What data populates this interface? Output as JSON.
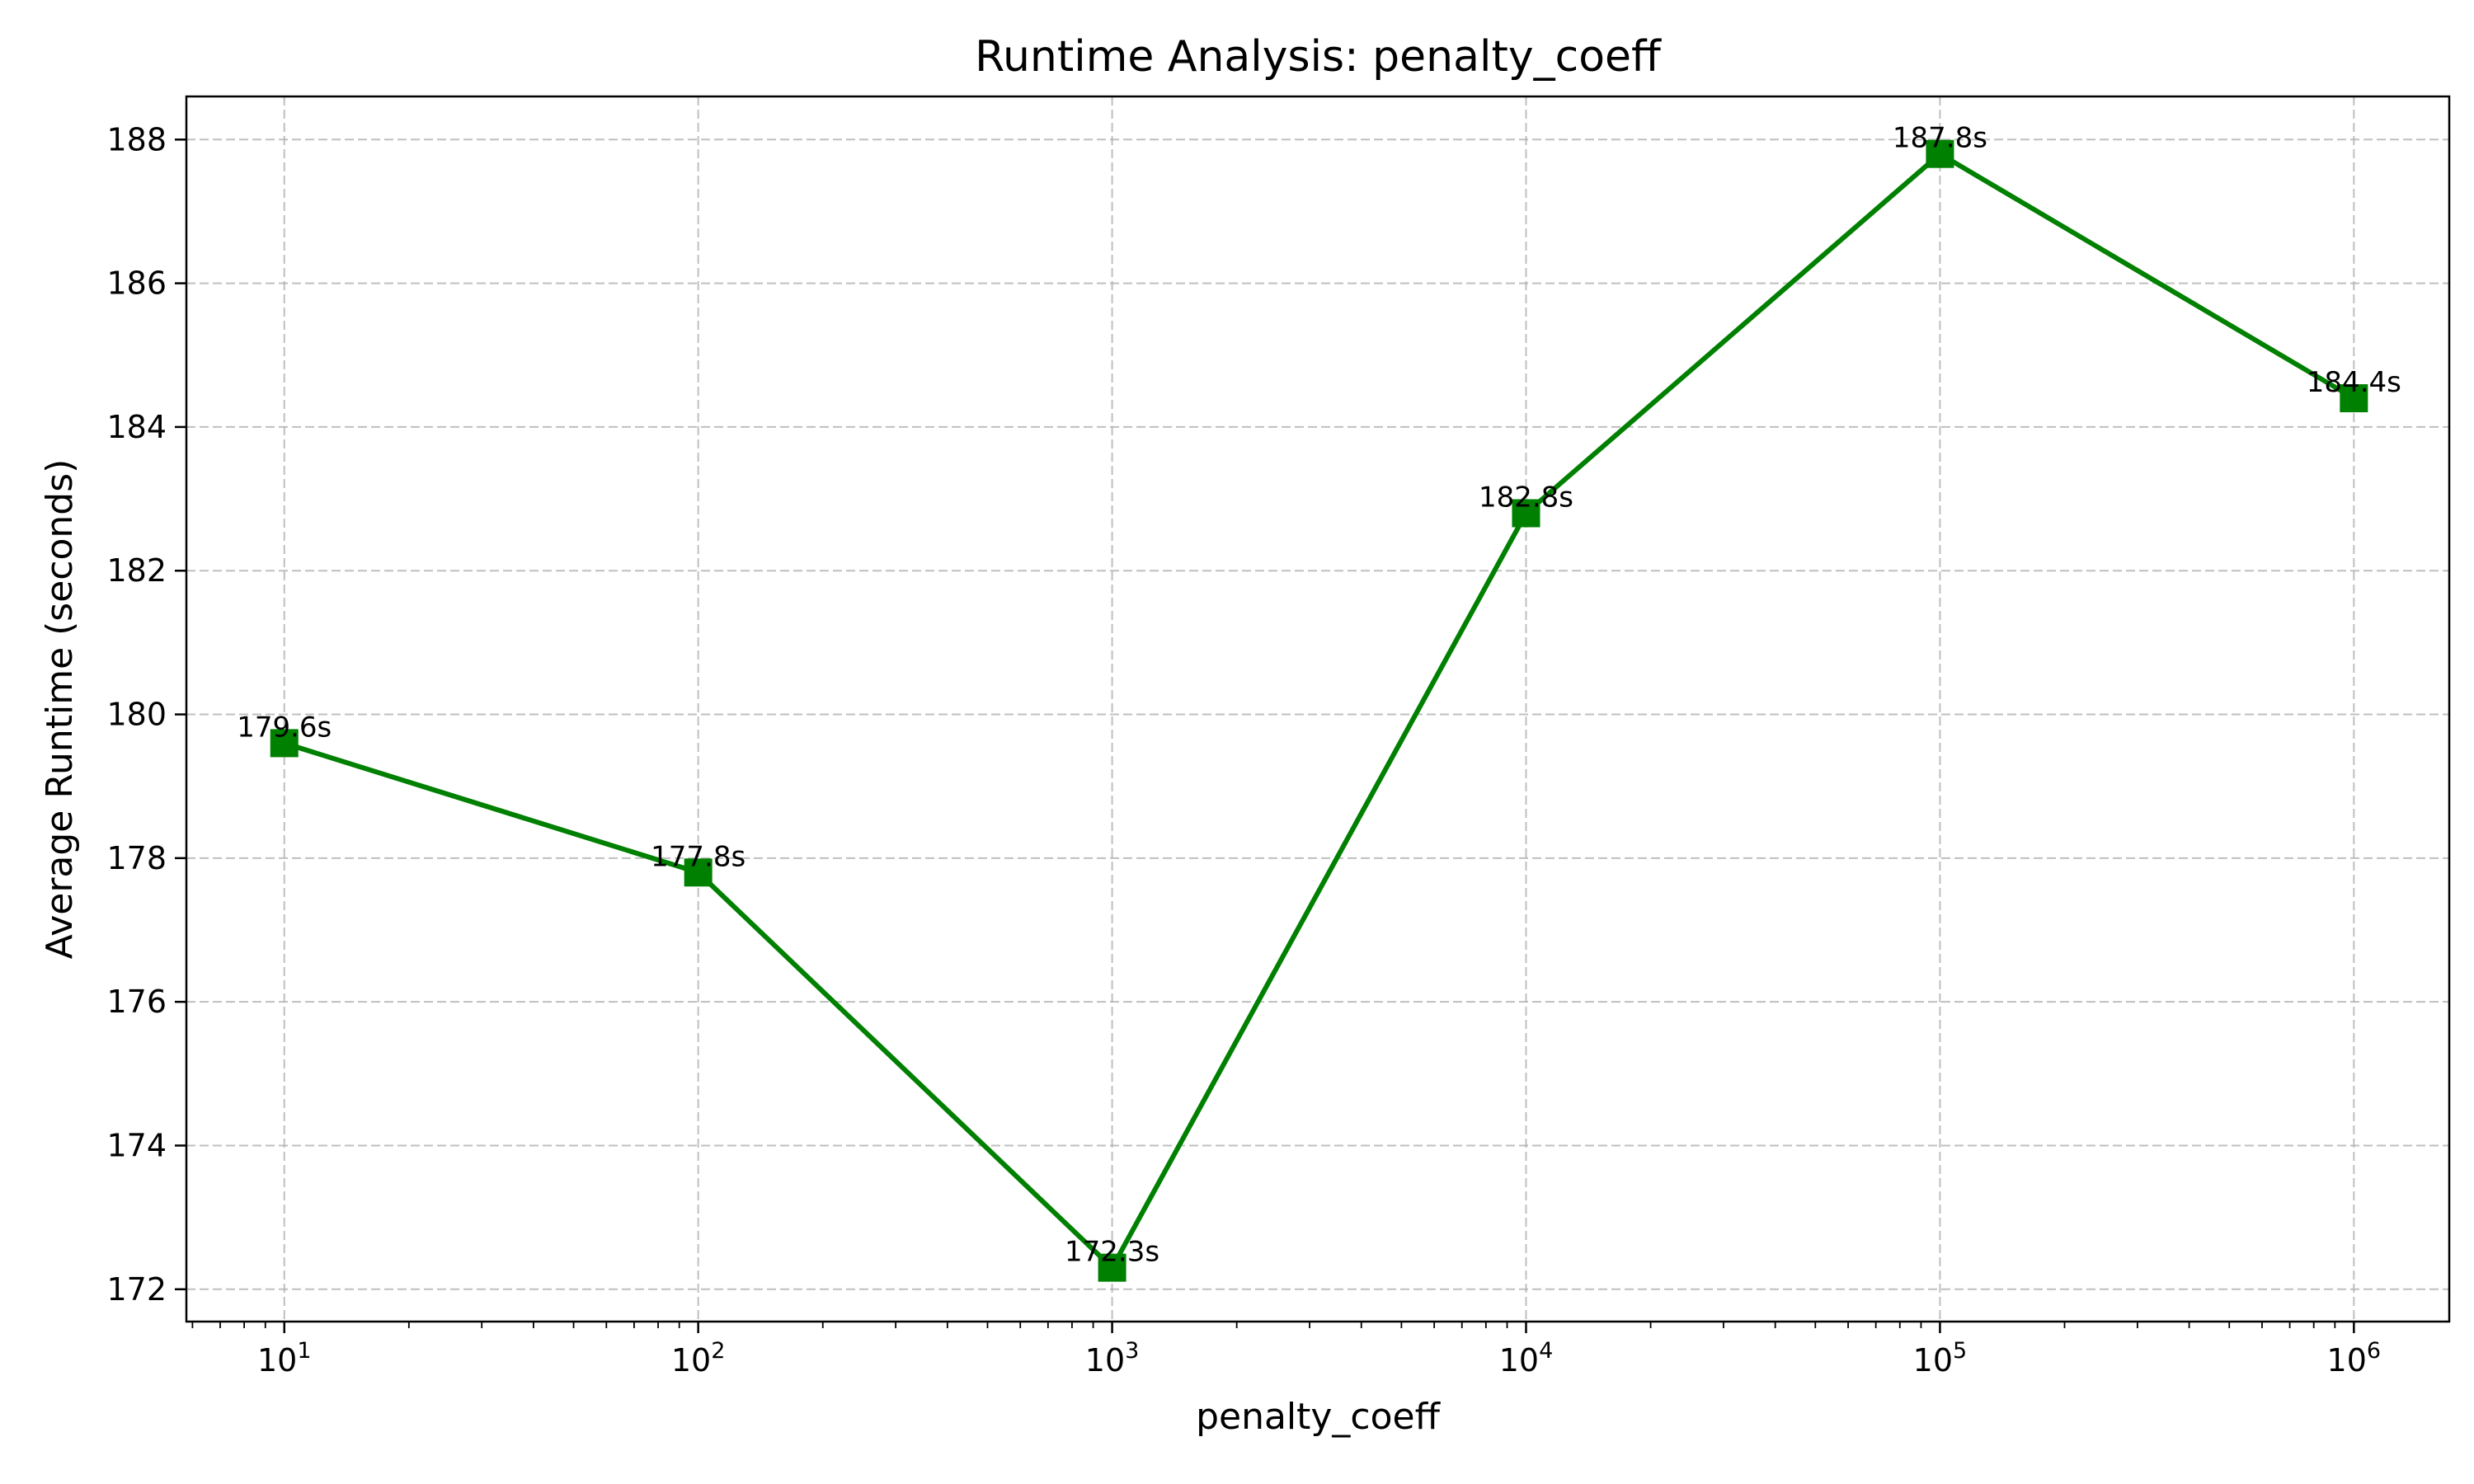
{
  "chart_data": {
    "type": "line",
    "title": "Runtime Analysis: penalty_coeff",
    "xlabel": "penalty_coeff",
    "ylabel": "Average Runtime (seconds)",
    "x_scale": "log",
    "x": [
      10,
      100,
      1000,
      10000,
      100000,
      1000000
    ],
    "values": [
      179.6,
      177.8,
      172.3,
      182.8,
      187.8,
      184.4
    ],
    "data_labels": [
      "179.6s",
      "177.8s",
      "172.3s",
      "182.8s",
      "187.8s",
      "184.4s"
    ],
    "x_ticks": [
      {
        "value": 10,
        "base": "10",
        "exp": "1"
      },
      {
        "value": 100,
        "base": "10",
        "exp": "2"
      },
      {
        "value": 1000,
        "base": "10",
        "exp": "3"
      },
      {
        "value": 10000,
        "base": "10",
        "exp": "4"
      },
      {
        "value": 100000,
        "base": "10",
        "exp": "5"
      },
      {
        "value": 1000000,
        "base": "10",
        "exp": "6"
      }
    ],
    "y_ticks": [
      172,
      174,
      176,
      178,
      180,
      182,
      184,
      186,
      188
    ],
    "xlim": [
      5.8,
      1700000
    ],
    "ylim": [
      171.55,
      188.6
    ],
    "grid": true,
    "marker": "square",
    "color": "#008000"
  }
}
